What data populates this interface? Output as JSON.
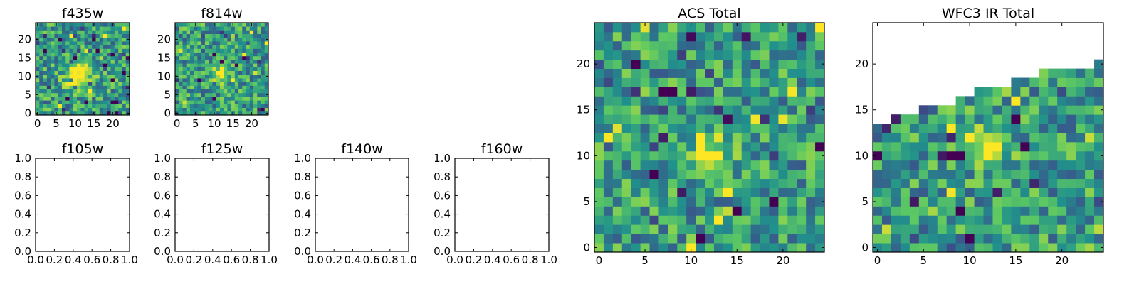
{
  "chart_data": [
    {
      "type": "heatmap",
      "title": "f435w",
      "xlim": [
        -0.5,
        24.5
      ],
      "ylim": [
        -0.5,
        24.5
      ],
      "xticks": [
        0,
        5,
        10,
        15,
        20
      ],
      "yticks": [
        0,
        5,
        10,
        15,
        20
      ],
      "grid_size": [
        25,
        25
      ],
      "colormap": [
        "#440154",
        "#3b528b",
        "#21918c",
        "#5ec962",
        "#fde725"
      ],
      "pattern": "noisy field with a bright blob centred near x=11, y=10"
    },
    {
      "type": "heatmap",
      "title": "f814w",
      "xlim": [
        -0.5,
        24.5
      ],
      "ylim": [
        -0.5,
        24.5
      ],
      "xticks": [
        0,
        5,
        10,
        15,
        20
      ],
      "yticks": [
        0,
        5,
        10,
        15,
        20
      ],
      "grid_size": [
        25,
        25
      ],
      "colormap": [
        "#440154",
        "#3b528b",
        "#21918c",
        "#5ec962",
        "#fde725"
      ],
      "pattern": "noisy field with a bright blob centred near x=12, y=11"
    },
    {
      "type": "line",
      "title": "f105w",
      "xlim": [
        0.0,
        1.0
      ],
      "ylim": [
        0.0,
        1.0
      ],
      "xticks": [
        "0.0",
        "0.2",
        "0.4",
        "0.6",
        "0.8",
        "1.0"
      ],
      "yticks": [
        "0.0",
        "0.2",
        "0.4",
        "0.6",
        "0.8",
        "1.0"
      ],
      "series": []
    },
    {
      "type": "line",
      "title": "f125w",
      "xlim": [
        0.0,
        1.0
      ],
      "ylim": [
        0.0,
        1.0
      ],
      "xticks": [
        "0.0",
        "0.2",
        "0.4",
        "0.6",
        "0.8",
        "1.0"
      ],
      "yticks": [
        "0.0",
        "0.2",
        "0.4",
        "0.6",
        "0.8",
        "1.0"
      ],
      "series": []
    },
    {
      "type": "line",
      "title": "f140w",
      "xlim": [
        0.0,
        1.0
      ],
      "ylim": [
        0.0,
        1.0
      ],
      "xticks": [
        "0.0",
        "0.2",
        "0.4",
        "0.6",
        "0.8",
        "1.0"
      ],
      "yticks": [
        "0.0",
        "0.2",
        "0.4",
        "0.6",
        "0.8",
        "1.0"
      ],
      "series": []
    },
    {
      "type": "line",
      "title": "f160w",
      "xlim": [
        0.0,
        1.0
      ],
      "ylim": [
        0.0,
        1.0
      ],
      "xticks": [
        "0.0",
        "0.2",
        "0.4",
        "0.6",
        "0.8",
        "1.0"
      ],
      "yticks": [
        "0.0",
        "0.2",
        "0.4",
        "0.6",
        "0.8",
        "1.0"
      ],
      "series": []
    },
    {
      "type": "heatmap",
      "title": "ACS Total",
      "xlim": [
        -0.5,
        24.5
      ],
      "ylim": [
        -0.5,
        24.5
      ],
      "xticks": [
        0,
        5,
        10,
        15,
        20
      ],
      "yticks": [
        0,
        5,
        10,
        15,
        20
      ],
      "grid_size": [
        25,
        25
      ],
      "colormap": [
        "#440154",
        "#3b528b",
        "#21918c",
        "#5ec962",
        "#fde725"
      ],
      "pattern": "noisy field with a bright blob centred near x=12, y=10"
    },
    {
      "type": "heatmap",
      "title": "WFC3 IR Total",
      "xlim": [
        -0.5,
        24.5
      ],
      "ylim": [
        -0.5,
        24.5
      ],
      "xticks": [
        0,
        5,
        10,
        15,
        20
      ],
      "yticks": [
        0,
        5,
        10,
        15,
        20
      ],
      "grid_size": [
        25,
        25
      ],
      "colormap": [
        "#440154",
        "#3b528b",
        "#21918c",
        "#5ec962",
        "#fde725"
      ],
      "pattern": "stepped coverage: data only below a staircase upper edge (rising from y=13 at left to y=19 at right); bright blob near x=12, y=11"
    }
  ]
}
